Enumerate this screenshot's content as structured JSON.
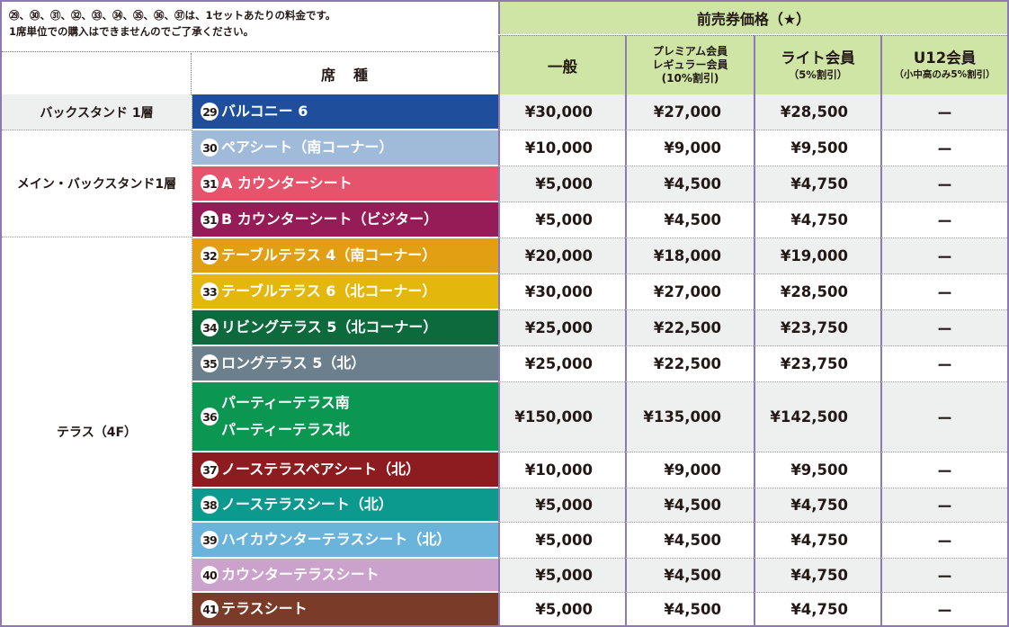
{
  "notes": {
    "line1": "㉙、㉚、㉛、㉜、㉝、㉞、㉟、㊱、㊲は、1セットあたりの料金です。",
    "line2": "1席単位での購入はできませんのでご了承ください。"
  },
  "header": {
    "presale": "前売券価格（★）",
    "seat_type": "席　種",
    "columns": {
      "general": {
        "label": "一般"
      },
      "premium": {
        "label": "プレミアム会員",
        "label2": "レギュラー会員",
        "sub": "(10%割引)"
      },
      "light": {
        "label": "ライト会員",
        "sub": "（5%割引）"
      },
      "u12": {
        "label": "U12会員",
        "sub": "（小中高のみ5%割引）"
      }
    }
  },
  "zones": [
    {
      "label": "バックスタンド 1層"
    },
    {
      "label": "メイン・バックスタンド1層"
    },
    {
      "label": "テラス（4F）"
    }
  ],
  "rows": [
    {
      "num": "29",
      "name": "バルコニー 6",
      "color": "#1f4e9c",
      "general": "¥30,000",
      "premium": "¥27,000",
      "light": "¥28,500",
      "u12": "ー"
    },
    {
      "num": "30",
      "name": "ペアシート（南コーナー）",
      "color": "#9fbbd9",
      "general": "¥10,000",
      "premium": "¥9,000",
      "light": "¥9,500",
      "u12": "ー"
    },
    {
      "num": "31",
      "name": "A カウンターシート",
      "color": "#e6536c",
      "general": "¥5,000",
      "premium": "¥4,500",
      "light": "¥4,750",
      "u12": "ー"
    },
    {
      "num": "31",
      "name": "B カウンターシート（ビジター）",
      "color": "#951c57",
      "general": "¥5,000",
      "premium": "¥4,500",
      "light": "¥4,750",
      "u12": "ー"
    },
    {
      "num": "32",
      "name": "テーブルテラス 4（南コーナー）",
      "color": "#e39f14",
      "general": "¥20,000",
      "premium": "¥18,000",
      "light": "¥19,000",
      "u12": "ー"
    },
    {
      "num": "33",
      "name": "テーブルテラス 6（北コーナー）",
      "color": "#e4b70c",
      "general": "¥30,000",
      "premium": "¥27,000",
      "light": "¥28,500",
      "u12": "ー"
    },
    {
      "num": "34",
      "name": "リビングテラス 5（北コーナー）",
      "color": "#0d6a3d",
      "general": "¥25,000",
      "premium": "¥22,500",
      "light": "¥23,750",
      "u12": "ー"
    },
    {
      "num": "35",
      "name": "ロングテラス 5（北）",
      "color": "#6b7f8c",
      "general": "¥25,000",
      "premium": "¥22,500",
      "light": "¥23,750",
      "u12": "ー"
    },
    {
      "num": "36",
      "name": "パーティーテラス南",
      "name2": "パーティーテラス北",
      "color": "#0b9652",
      "general": "¥150,000",
      "premium": "¥135,000",
      "light": "¥142,500",
      "u12": "ー"
    },
    {
      "num": "37",
      "name": "ノーステラスペアシート（北）",
      "color": "#8c1c20",
      "general": "¥10,000",
      "premium": "¥9,000",
      "light": "¥9,500",
      "u12": "ー"
    },
    {
      "num": "38",
      "name": "ノーステラスシート（北）",
      "color": "#0d9a8e",
      "general": "¥5,000",
      "premium": "¥4,500",
      "light": "¥4,750",
      "u12": "ー"
    },
    {
      "num": "39",
      "name": "ハイカウンターテラスシート（北）",
      "color": "#6ab3da",
      "general": "¥5,000",
      "premium": "¥4,500",
      "light": "¥4,750",
      "u12": "ー"
    },
    {
      "num": "40",
      "name": "カウンターテラスシート",
      "color": "#caa2cb",
      "general": "¥5,000",
      "premium": "¥4,500",
      "light": "¥4,750",
      "u12": "ー"
    },
    {
      "num": "41",
      "name": "テラスシート",
      "color": "#7b3b29",
      "general": "¥5,000",
      "premium": "¥4,500",
      "light": "¥4,750",
      "u12": "ー"
    }
  ]
}
